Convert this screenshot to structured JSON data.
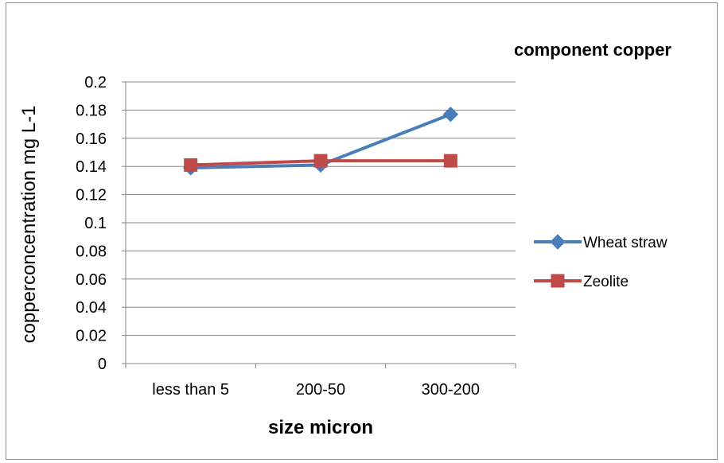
{
  "chart_data": {
    "type": "line",
    "title": "component copper",
    "xlabel": "size micron",
    "ylabel": "copperconcentration mg L-1",
    "categories": [
      "less than 5",
      "200-50",
      "300-200"
    ],
    "ylim": [
      0,
      0.2
    ],
    "yticks": [
      "0",
      "0.02",
      "0.04",
      "0.06",
      "0.08",
      "0.1",
      "0.12",
      "0.14",
      "0.16",
      "0.18",
      "0.2"
    ],
    "ytick_values": [
      0,
      0.02,
      0.04,
      0.06,
      0.08,
      0.1,
      0.12,
      0.14,
      0.16,
      0.18,
      0.2
    ],
    "grid": true,
    "legend_position": "right",
    "series": [
      {
        "name": "Wheat straw",
        "values": [
          0.139,
          0.141,
          0.177
        ],
        "color": "#4a7ebb",
        "marker": "diamond"
      },
      {
        "name": "Zeolite",
        "values": [
          0.141,
          0.144,
          0.144
        ],
        "color": "#be4b48",
        "marker": "square"
      }
    ]
  }
}
